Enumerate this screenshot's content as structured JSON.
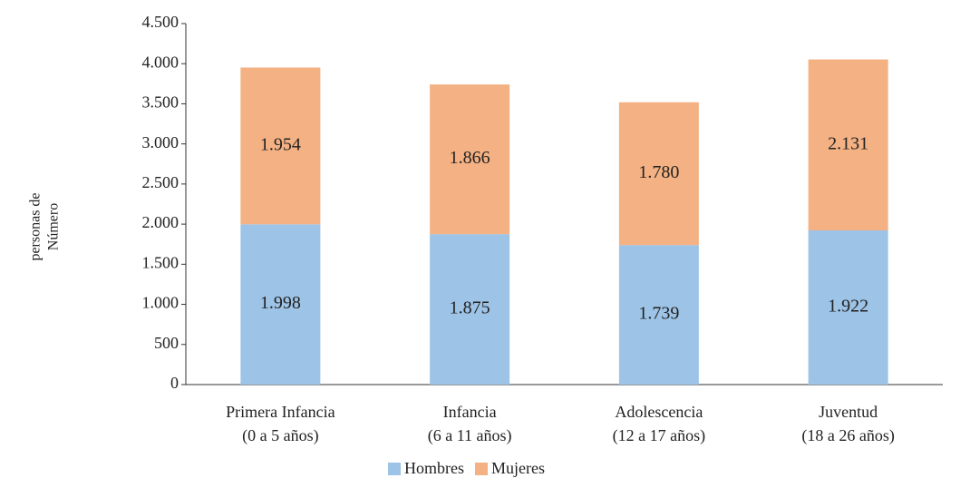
{
  "chart_data": {
    "type": "stacked_bar",
    "ylabel": [
      "personas de",
      "Número"
    ],
    "categories": [
      [
        "Primera Infancia",
        "(0 a 5 años)"
      ],
      [
        "Infancia",
        "(6 a 11 años)"
      ],
      [
        "Adolescencia",
        "(12 a 17 años)"
      ],
      [
        "Juventud",
        "(18 a 26 años)"
      ]
    ],
    "series": [
      {
        "name": "Hombres",
        "color": "#9dc3e6",
        "values": [
          1998,
          1875,
          1739,
          1922
        ],
        "value_labels": [
          "1.998",
          "1.875",
          "1.739",
          "1.922"
        ]
      },
      {
        "name": "Mujeres",
        "color": "#f4b183",
        "values": [
          1954,
          1866,
          1780,
          2131
        ],
        "value_labels": [
          "1.954",
          "1.866",
          "1.780",
          "2.131"
        ]
      }
    ],
    "ylim": [
      0,
      4500
    ],
    "yticks": [
      0,
      {
        "value": 500,
        "label": "500"
      },
      {
        "value": 1000,
        "label": "1.000"
      },
      {
        "value": 1500,
        "label": "1.500"
      },
      {
        "value": 2000,
        "label": "2.000"
      },
      {
        "value": 2500,
        "label": "2.500"
      },
      {
        "value": 3000,
        "label": "3.000"
      },
      {
        "value": 3500,
        "label": "3.500"
      },
      {
        "value": 4000,
        "label": "4.000"
      },
      {
        "value": 4500,
        "label": "4.500"
      }
    ],
    "legend": "bottom"
  }
}
